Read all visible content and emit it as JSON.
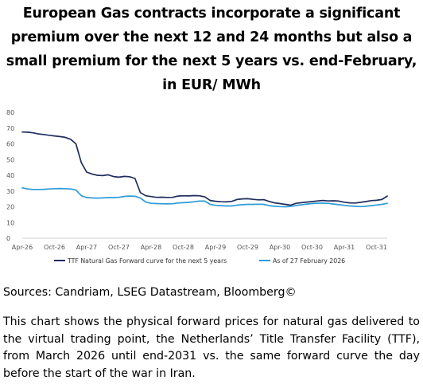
{
  "title": "European Gas contracts incorporate a significant premium over the next 12 and 24 months but also a small premium for the next 5 years vs. end-February, in EUR/ MWh",
  "sources": "Sources: Candriam, LSEG Datastream, Bloomberg©",
  "description": "This chart shows the physical forward prices for natural gas delivered to the virtual trading point, the Netherlands’ Title Transfer Facility (TTF), from March 2026 until end-2031 vs. the same forward curve the day before the start of the war in Iran.",
  "chart_data": {
    "type": "line",
    "title": "",
    "xlabel": "",
    "ylabel": "",
    "ylim": [
      0,
      80
    ],
    "yticks": [
      0,
      10,
      20,
      30,
      40,
      50,
      60,
      70,
      80
    ],
    "xtick_labels": [
      "Apr-26",
      "Oct-26",
      "Apr-27",
      "Oct-27",
      "Apr-28",
      "Oct-28",
      "Apr-29",
      "Oct-29",
      "Apr-30",
      "Oct-30",
      "Apr-31",
      "Oct-31"
    ],
    "x": [
      "Apr-26",
      "May-26",
      "Jun-26",
      "Jul-26",
      "Aug-26",
      "Sep-26",
      "Oct-26",
      "Nov-26",
      "Dec-26",
      "Jan-27",
      "Feb-27",
      "Mar-27",
      "Apr-27",
      "May-27",
      "Jun-27",
      "Jul-27",
      "Aug-27",
      "Sep-27",
      "Oct-27",
      "Nov-27",
      "Dec-27",
      "Jan-28",
      "Feb-28",
      "Mar-28",
      "Apr-28",
      "May-28",
      "Jun-28",
      "Jul-28",
      "Aug-28",
      "Sep-28",
      "Oct-28",
      "Nov-28",
      "Dec-28",
      "Jan-29",
      "Feb-29",
      "Mar-29",
      "Apr-29",
      "May-29",
      "Jun-29",
      "Jul-29",
      "Aug-29",
      "Sep-29",
      "Oct-29",
      "Nov-29",
      "Dec-29",
      "Jan-30",
      "Feb-30",
      "Mar-30",
      "Apr-30",
      "May-30",
      "Jun-30",
      "Jul-30",
      "Aug-30",
      "Sep-30",
      "Oct-30",
      "Nov-30",
      "Dec-30",
      "Jan-31",
      "Feb-31",
      "Mar-31",
      "Apr-31",
      "May-31",
      "Jun-31",
      "Jul-31",
      "Aug-31",
      "Sep-31",
      "Oct-31",
      "Nov-31",
      "Dec-31"
    ],
    "series": [
      {
        "name": "TTF Natural Gas Forward curve for the next 5 years",
        "color": "#1f2d5c",
        "values": [
          67.5,
          67.4,
          67.0,
          66.3,
          65.9,
          65.4,
          65.0,
          64.6,
          64.1,
          62.9,
          60.0,
          48.0,
          42.0,
          40.8,
          40.0,
          39.8,
          40.3,
          39.2,
          38.8,
          39.3,
          39.1,
          38.0,
          29.0,
          27.0,
          26.5,
          26.0,
          26.1,
          25.9,
          26.0,
          26.8,
          27.0,
          26.9,
          27.1,
          27.0,
          26.3,
          24.0,
          23.5,
          23.2,
          23.1,
          23.4,
          24.6,
          25.0,
          25.1,
          24.7,
          24.4,
          24.5,
          23.4,
          22.5,
          22.0,
          21.5,
          21.0,
          22.2,
          22.6,
          23.0,
          23.3,
          23.7,
          24.0,
          23.7,
          23.8,
          23.6,
          22.9,
          22.5,
          22.4,
          22.8,
          23.3,
          23.9,
          24.1,
          24.6,
          26.8
        ]
      },
      {
        "name": "As of 27 February 2026",
        "color": "#2e9bd6",
        "values": [
          32.0,
          31.3,
          31.0,
          31.0,
          31.1,
          31.3,
          31.5,
          31.6,
          31.5,
          31.3,
          30.7,
          27.0,
          25.8,
          25.6,
          25.5,
          25.6,
          25.8,
          25.8,
          26.0,
          26.6,
          26.8,
          26.7,
          25.5,
          23.0,
          22.2,
          22.0,
          21.9,
          21.8,
          21.9,
          22.4,
          22.6,
          22.8,
          23.2,
          23.6,
          23.6,
          21.5,
          20.9,
          20.7,
          20.5,
          20.5,
          21.0,
          21.3,
          21.5,
          21.5,
          21.6,
          21.5,
          20.7,
          20.3,
          20.1,
          20.0,
          20.2,
          20.8,
          21.2,
          21.7,
          22.0,
          22.3,
          22.3,
          22.2,
          21.7,
          21.3,
          20.9,
          20.5,
          20.3,
          20.1,
          20.3,
          20.7,
          21.1,
          21.5,
          22.2
        ]
      }
    ],
    "grid": false,
    "legend_position": "bottom"
  }
}
